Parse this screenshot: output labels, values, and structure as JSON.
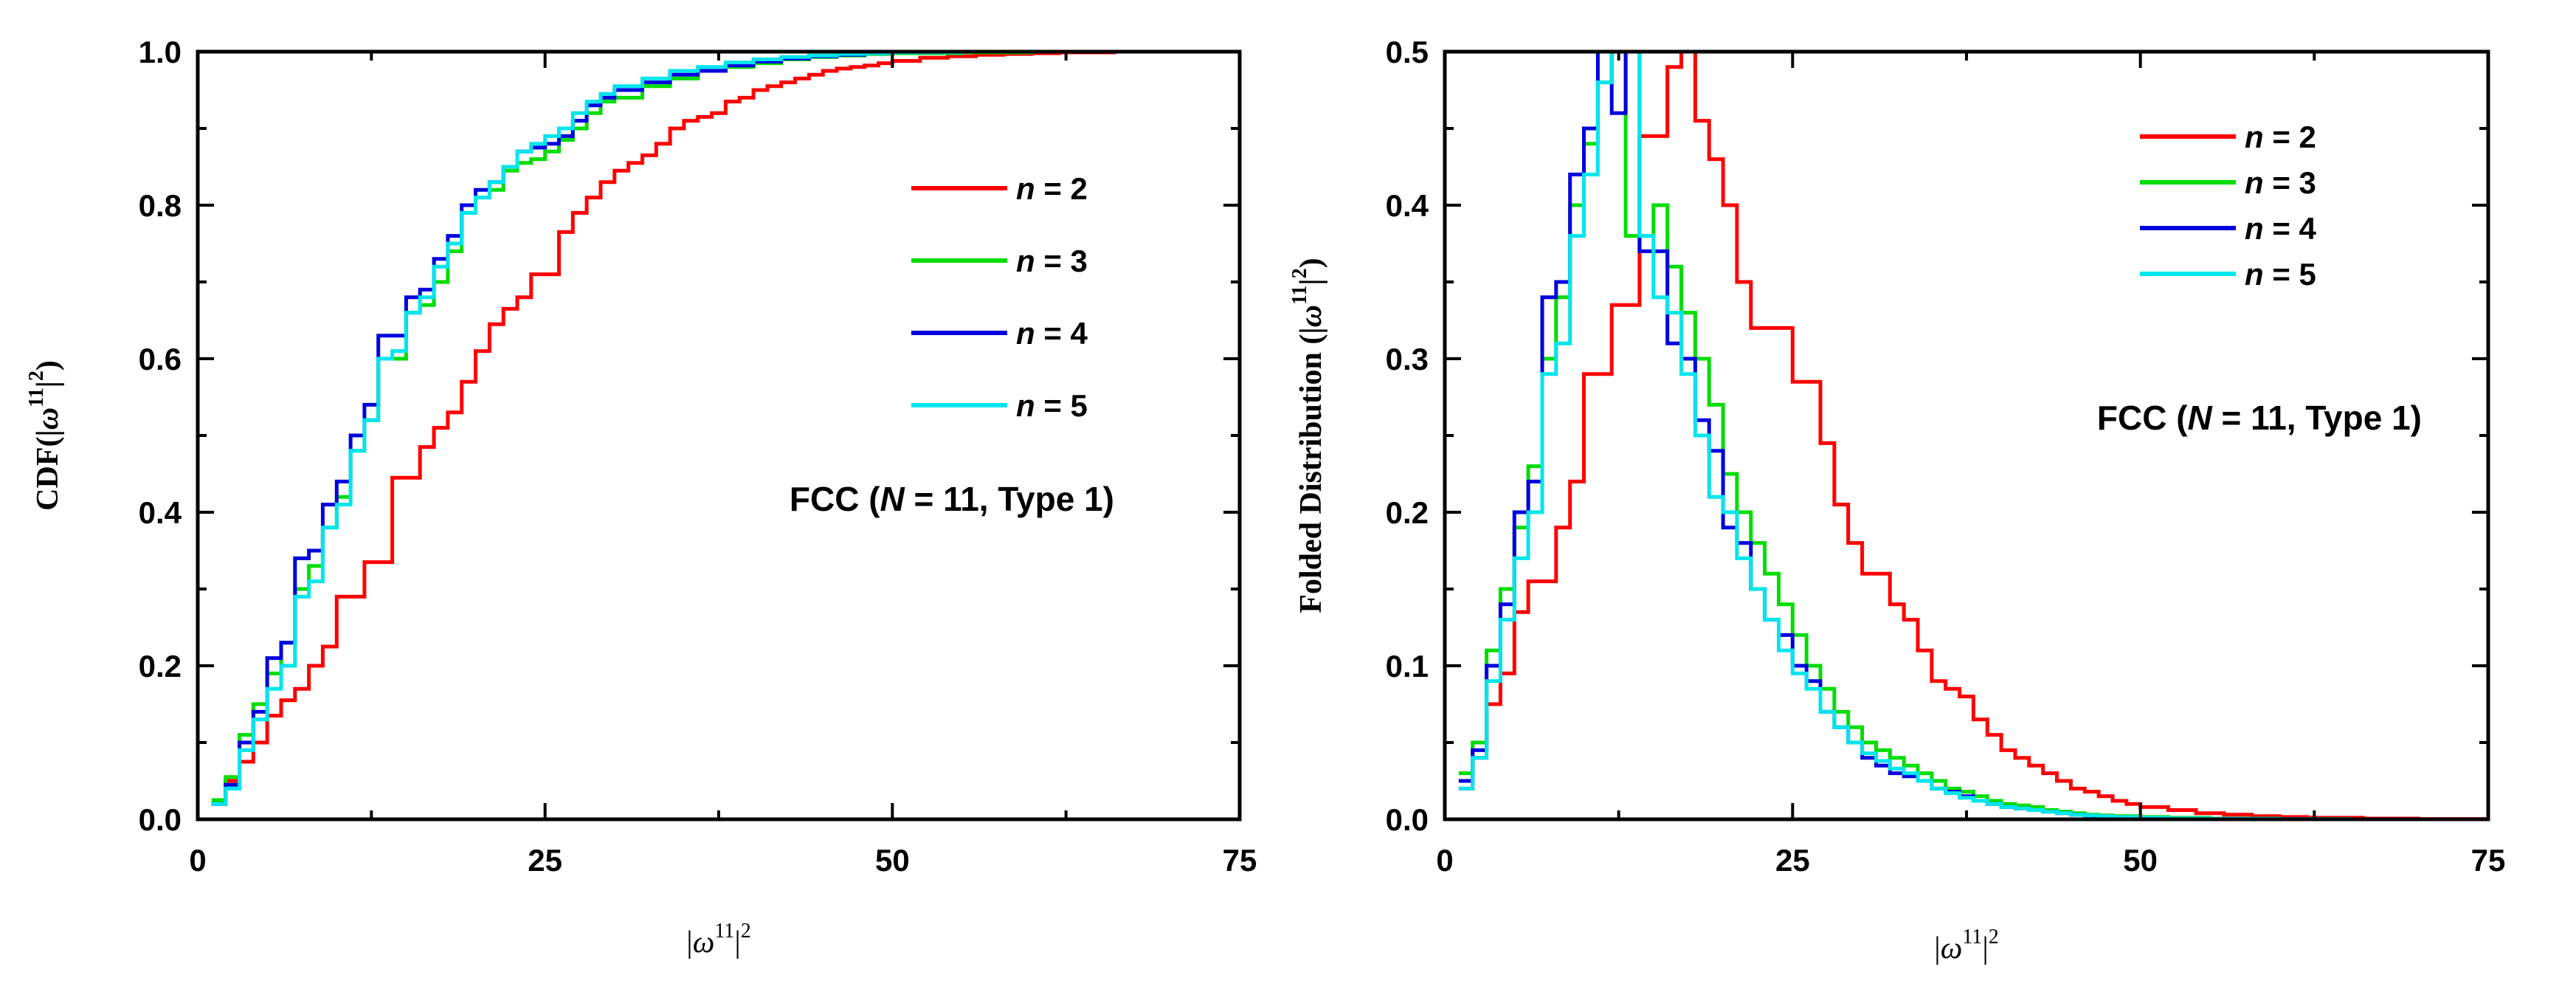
{
  "chart_data": [
    {
      "type": "line",
      "step": true,
      "xlabel_parts": {
        "open": "|",
        "symbol": "ω",
        "sup1": "11",
        "close": "|",
        "sup2": "2"
      },
      "ylabel_parts": {
        "prefix": "CDF(|",
        "symbol": "ω",
        "sup1": "11",
        "close": "|",
        "sup2": "2",
        "suffix": ")"
      },
      "xlim": [
        0,
        75
      ],
      "ylim": [
        0,
        1
      ],
      "xticks": [
        0,
        25,
        50,
        75
      ],
      "xtick_labels": [
        "0",
        "25",
        "50",
        "75"
      ],
      "yticks": [
        0,
        0.2,
        0.4,
        0.6,
        0.8,
        1.0
      ],
      "ytick_labels": [
        "0.0",
        "0.2",
        "0.4",
        "0.6",
        "0.8",
        "1.0"
      ],
      "annotation": {
        "prefix": "FCC (",
        "italic": "N",
        "suffix": " = 11, Type 1)"
      },
      "legend_position": "center-right",
      "series": [
        {
          "name": "n = 2",
          "var": "n",
          "rest": " = 2",
          "color": "#ff0000",
          "x": [
            1,
            2,
            3,
            4,
            5,
            6,
            7,
            8,
            9,
            10,
            11,
            12,
            13,
            14,
            15,
            16,
            17,
            18,
            19,
            20,
            21,
            22,
            23,
            24,
            25,
            26,
            27,
            28,
            29,
            30,
            31,
            32,
            33,
            34,
            35,
            36,
            37,
            38,
            39,
            40,
            41,
            42,
            43,
            44,
            45,
            46,
            47,
            48,
            49,
            50,
            52,
            54,
            56,
            58,
            60,
            62,
            64,
            66,
            68,
            70,
            75
          ],
          "y": [
            0.02,
            0.05,
            0.075,
            0.1,
            0.135,
            0.155,
            0.17,
            0.2,
            0.225,
            0.29,
            0.29,
            0.335,
            0.335,
            0.445,
            0.445,
            0.485,
            0.51,
            0.53,
            0.57,
            0.61,
            0.645,
            0.665,
            0.68,
            0.71,
            0.71,
            0.765,
            0.79,
            0.81,
            0.83,
            0.845,
            0.855,
            0.865,
            0.88,
            0.9,
            0.91,
            0.915,
            0.92,
            0.935,
            0.94,
            0.95,
            0.955,
            0.96,
            0.965,
            0.97,
            0.975,
            0.978,
            0.98,
            0.982,
            0.985,
            0.988,
            0.992,
            0.994,
            0.996,
            0.997,
            0.998,
            0.999,
            0.999,
            1.0,
            1.0,
            1.0,
            1.0
          ]
        },
        {
          "name": "n = 3",
          "var": "n",
          "rest": " = 3",
          "color": "#00dd00",
          "x": [
            1,
            2,
            3,
            4,
            5,
            6,
            7,
            8,
            9,
            10,
            11,
            12,
            13,
            14,
            15,
            16,
            17,
            18,
            19,
            20,
            21,
            22,
            23,
            24,
            25,
            26,
            27,
            28,
            29,
            30,
            32,
            34,
            36,
            38,
            40,
            42,
            44,
            46,
            48,
            50,
            55,
            60,
            65,
            70,
            75
          ],
          "y": [
            0.025,
            0.055,
            0.11,
            0.15,
            0.19,
            0.23,
            0.3,
            0.33,
            0.38,
            0.42,
            0.48,
            0.52,
            0.6,
            0.6,
            0.66,
            0.67,
            0.7,
            0.74,
            0.79,
            0.81,
            0.82,
            0.845,
            0.855,
            0.86,
            0.87,
            0.885,
            0.9,
            0.92,
            0.935,
            0.94,
            0.955,
            0.965,
            0.975,
            0.98,
            0.985,
            0.99,
            0.993,
            0.995,
            0.997,
            0.998,
            0.999,
            1.0,
            1.0,
            1.0,
            1.0
          ]
        },
        {
          "name": "n = 4",
          "var": "n",
          "rest": " = 4",
          "color": "#0000dd",
          "x": [
            1,
            2,
            3,
            4,
            5,
            6,
            7,
            8,
            9,
            10,
            11,
            12,
            13,
            14,
            15,
            16,
            17,
            18,
            19,
            20,
            21,
            22,
            23,
            24,
            25,
            26,
            27,
            28,
            29,
            30,
            32,
            34,
            36,
            38,
            40,
            42,
            44,
            46,
            48,
            50,
            55,
            60,
            65,
            70,
            75
          ],
          "y": [
            0.02,
            0.045,
            0.1,
            0.14,
            0.21,
            0.23,
            0.34,
            0.35,
            0.41,
            0.44,
            0.5,
            0.54,
            0.63,
            0.63,
            0.68,
            0.69,
            0.73,
            0.76,
            0.8,
            0.82,
            0.83,
            0.85,
            0.87,
            0.875,
            0.88,
            0.89,
            0.91,
            0.93,
            0.94,
            0.95,
            0.96,
            0.97,
            0.975,
            0.982,
            0.987,
            0.991,
            0.994,
            0.996,
            0.998,
            0.999,
            1.0,
            1.0,
            1.0,
            1.0,
            1.0
          ]
        },
        {
          "name": "n = 5",
          "var": "n",
          "rest": " = 5",
          "color": "#00e5ee",
          "x": [
            1,
            2,
            3,
            4,
            5,
            6,
            7,
            8,
            9,
            10,
            11,
            12,
            13,
            14,
            15,
            16,
            17,
            18,
            19,
            20,
            21,
            22,
            23,
            24,
            25,
            26,
            27,
            28,
            29,
            30,
            32,
            34,
            36,
            38,
            40,
            42,
            44,
            46,
            48,
            50,
            55,
            60,
            65,
            70,
            75
          ],
          "y": [
            0.02,
            0.04,
            0.09,
            0.13,
            0.17,
            0.2,
            0.29,
            0.31,
            0.38,
            0.41,
            0.48,
            0.52,
            0.6,
            0.61,
            0.66,
            0.68,
            0.72,
            0.75,
            0.79,
            0.81,
            0.83,
            0.85,
            0.87,
            0.88,
            0.89,
            0.9,
            0.92,
            0.935,
            0.945,
            0.955,
            0.965,
            0.975,
            0.98,
            0.986,
            0.99,
            0.993,
            0.995,
            0.997,
            0.998,
            0.999,
            1.0,
            1.0,
            1.0,
            1.0,
            1.0
          ]
        }
      ]
    },
    {
      "type": "line",
      "step": true,
      "xlabel_parts": {
        "open": "|",
        "symbol": "ω",
        "sup1": "11",
        "close": "|",
        "sup2": "2"
      },
      "ylabel_parts": {
        "prefix": "Folded Distribution (|",
        "symbol": "ω",
        "sup1": "11",
        "close": "|",
        "sup2": "2",
        "suffix": ")"
      },
      "xlim": [
        0,
        75
      ],
      "ylim": [
        0,
        0.5
      ],
      "xticks": [
        0,
        25,
        50,
        75
      ],
      "xtick_labels": [
        "0",
        "25",
        "50",
        "75"
      ],
      "yticks": [
        0,
        0.1,
        0.2,
        0.3,
        0.4,
        0.5
      ],
      "ytick_labels": [
        "0.0",
        "0.1",
        "0.2",
        "0.3",
        "0.4",
        "0.5"
      ],
      "annotation": {
        "prefix": "FCC (",
        "italic": "N",
        "suffix": " = 11, Type 1)"
      },
      "legend_position": "top-right",
      "series": [
        {
          "name": "n = 2",
          "var": "n",
          "rest": " = 2",
          "color": "#ff0000",
          "x": [
            1,
            2,
            3,
            4,
            5,
            6,
            7,
            8,
            9,
            10,
            11,
            12,
            13,
            14,
            15,
            16,
            17,
            18,
            19,
            20,
            21,
            22,
            23,
            24,
            25,
            26,
            27,
            28,
            29,
            30,
            31,
            32,
            33,
            34,
            35,
            36,
            37,
            38,
            39,
            40,
            41,
            42,
            43,
            44,
            45,
            46,
            47,
            48,
            49,
            50,
            52,
            54,
            56,
            58,
            60,
            62,
            64,
            66,
            68,
            70,
            75
          ],
          "y": [
            0.02,
            0.04,
            0.075,
            0.095,
            0.135,
            0.155,
            0.155,
            0.19,
            0.22,
            0.29,
            0.29,
            0.335,
            0.335,
            0.445,
            0.445,
            0.49,
            0.51,
            0.455,
            0.43,
            0.4,
            0.35,
            0.32,
            0.32,
            0.32,
            0.285,
            0.285,
            0.245,
            0.205,
            0.18,
            0.16,
            0.16,
            0.14,
            0.13,
            0.11,
            0.09,
            0.085,
            0.08,
            0.065,
            0.055,
            0.045,
            0.04,
            0.035,
            0.03,
            0.025,
            0.02,
            0.018,
            0.015,
            0.012,
            0.01,
            0.008,
            0.006,
            0.004,
            0.003,
            0.002,
            0.0015,
            0.001,
            0.001,
            0.0005,
            0.0005,
            0.0002,
            0.0
          ]
        },
        {
          "name": "n = 3",
          "var": "n",
          "rest": " = 3",
          "color": "#00dd00",
          "x": [
            1,
            2,
            3,
            4,
            5,
            6,
            7,
            8,
            9,
            10,
            11,
            12,
            13,
            14,
            15,
            16,
            17,
            18,
            19,
            20,
            21,
            22,
            23,
            24,
            25,
            26,
            27,
            28,
            29,
            30,
            31,
            32,
            33,
            34,
            35,
            36,
            37,
            38,
            39,
            40,
            41,
            42,
            43,
            44,
            45,
            46,
            47,
            48,
            50,
            52,
            55,
            60,
            65,
            70,
            75
          ],
          "y": [
            0.03,
            0.05,
            0.11,
            0.15,
            0.19,
            0.23,
            0.3,
            0.34,
            0.4,
            0.44,
            0.48,
            0.51,
            0.38,
            0.38,
            0.4,
            0.36,
            0.33,
            0.3,
            0.27,
            0.225,
            0.2,
            0.18,
            0.16,
            0.14,
            0.12,
            0.1,
            0.085,
            0.07,
            0.06,
            0.05,
            0.045,
            0.04,
            0.035,
            0.03,
            0.025,
            0.02,
            0.018,
            0.015,
            0.012,
            0.01,
            0.009,
            0.008,
            0.006,
            0.005,
            0.004,
            0.003,
            0.0025,
            0.002,
            0.0015,
            0.001,
            0.0005,
            0.0002,
            0.0,
            0.0,
            0.0
          ]
        },
        {
          "name": "n = 4",
          "var": "n",
          "rest": " = 4",
          "color": "#0000dd",
          "x": [
            1,
            2,
            3,
            4,
            5,
            6,
            7,
            8,
            9,
            10,
            11,
            12,
            13,
            14,
            15,
            16,
            17,
            18,
            19,
            20,
            21,
            22,
            23,
            24,
            25,
            26,
            27,
            28,
            29,
            30,
            31,
            32,
            33,
            34,
            35,
            36,
            37,
            38,
            39,
            40,
            41,
            42,
            43,
            44,
            45,
            46,
            47,
            48,
            50,
            52,
            55,
            60,
            65,
            70,
            75
          ],
          "y": [
            0.025,
            0.045,
            0.1,
            0.14,
            0.2,
            0.22,
            0.34,
            0.35,
            0.42,
            0.45,
            0.5,
            0.46,
            0.5,
            0.37,
            0.37,
            0.31,
            0.3,
            0.26,
            0.24,
            0.19,
            0.18,
            0.15,
            0.13,
            0.12,
            0.1,
            0.09,
            0.07,
            0.06,
            0.05,
            0.04,
            0.035,
            0.03,
            0.028,
            0.025,
            0.02,
            0.018,
            0.015,
            0.012,
            0.01,
            0.008,
            0.007,
            0.006,
            0.005,
            0.004,
            0.003,
            0.002,
            0.0015,
            0.001,
            0.0008,
            0.0005,
            0.0003,
            0.0001,
            0.0,
            0.0,
            0.0
          ]
        },
        {
          "name": "n = 5",
          "var": "n",
          "rest": " = 5",
          "color": "#00e5ee",
          "x": [
            1,
            2,
            3,
            4,
            5,
            6,
            7,
            8,
            9,
            10,
            11,
            12,
            13,
            14,
            15,
            16,
            17,
            18,
            19,
            20,
            21,
            22,
            23,
            24,
            25,
            26,
            27,
            28,
            29,
            30,
            31,
            32,
            33,
            34,
            35,
            36,
            37,
            38,
            39,
            40,
            41,
            42,
            43,
            44,
            45,
            46,
            47,
            48,
            50,
            52,
            55,
            60,
            65,
            70,
            75
          ],
          "y": [
            0.02,
            0.04,
            0.09,
            0.13,
            0.17,
            0.2,
            0.29,
            0.31,
            0.38,
            0.42,
            0.48,
            0.5,
            0.5,
            0.38,
            0.34,
            0.33,
            0.29,
            0.25,
            0.21,
            0.2,
            0.17,
            0.15,
            0.13,
            0.11,
            0.095,
            0.085,
            0.07,
            0.06,
            0.05,
            0.043,
            0.038,
            0.033,
            0.03,
            0.025,
            0.02,
            0.017,
            0.014,
            0.012,
            0.01,
            0.008,
            0.007,
            0.006,
            0.005,
            0.004,
            0.003,
            0.0025,
            0.002,
            0.0015,
            0.001,
            0.0006,
            0.0003,
            0.0001,
            0.0,
            0.0,
            0.0
          ]
        }
      ]
    }
  ]
}
